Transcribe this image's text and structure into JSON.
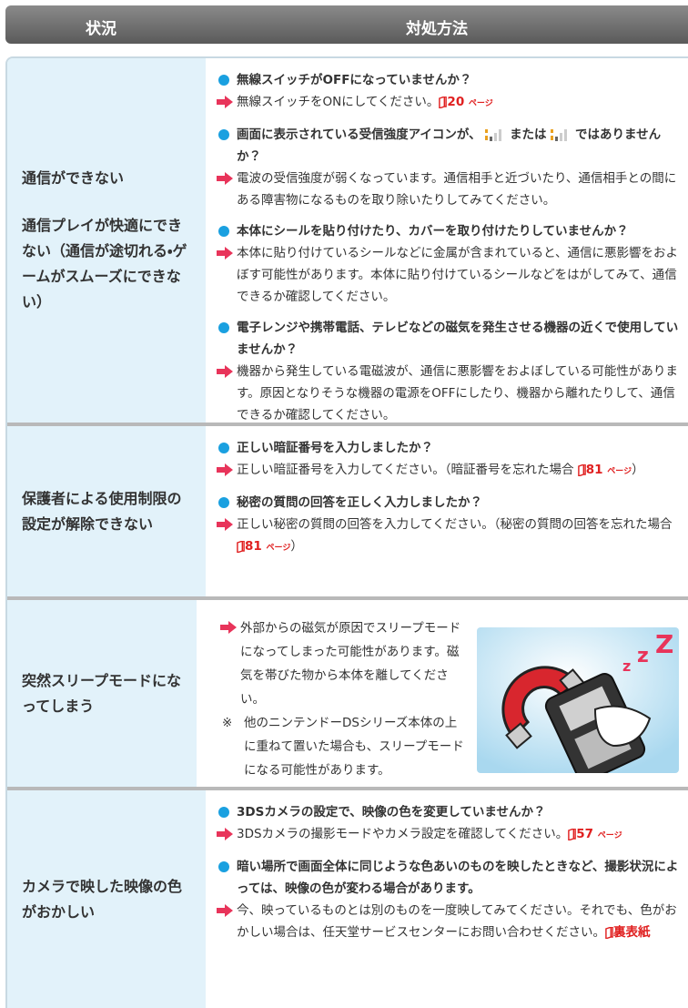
{
  "header": {
    "situation": "状況",
    "solution": "対処方法"
  },
  "rows": [
    {
      "situation": [
        "通信ができない",
        "通信プレイが快適にできない（通信が途切れる・ゲームがスムーズにできない）"
      ],
      "items": [
        {
          "q": [
            "無線スイッチがOFFになっていませんか？"
          ],
          "a": {
            "text": "無線スイッチをONにしてください。",
            "ref": "20",
            "unit": "ページ"
          }
        },
        {
          "q": [
            "画面に表示されている受信強度アイコンが、",
            "または",
            "ではありませんか？"
          ],
          "a": {
            "text": "電波の受信強度が弱くなっています。通信相手と近づいたり、通信相手との間にある障害物になるものを取り除いたりしてみてください。"
          }
        },
        {
          "q": [
            "本体にシールを貼り付けたり、カバーを取り付けたりしていませんか？"
          ],
          "a": {
            "text": "本体に貼り付けているシールなどに金属が含まれていると、通信に悪影響をおよぼす可能性があります。本体に貼り付けているシールなどをはがしてみて、通信できるか確認してください。"
          }
        },
        {
          "q": [
            "電子レンジや携帯電話、テレビなどの磁気を発生させる機器の近くで使用していませんか？"
          ],
          "a": {
            "text": "機器から発生している電磁波が、通信に悪影響をおよぼしている可能性があります。原因となりそうな機器の電源をOFFにしたり、機器から離れたりして、通信できるか確認してください。"
          }
        }
      ]
    },
    {
      "situation": [
        "保護者による使用制限の設定が解除できない"
      ],
      "items": [
        {
          "q": [
            "正しい暗証番号を入力しましたか？"
          ],
          "a": {
            "text": "正しい暗証番号を入力してください。（暗証番号を忘れた場合",
            "ref": "81",
            "unit": "ページ",
            "tail": "）"
          }
        },
        {
          "q": [
            "秘密の質問の回答を正しく入力しましたか？"
          ],
          "a": {
            "text": "正しい秘密の質問の回答を入力してください。（秘密の質問の回答を忘れた場合",
            "ref": "81",
            "unit": "ページ",
            "tail": "）"
          }
        }
      ]
    },
    {
      "situation": [
        "突然スリープモードになってしまう"
      ],
      "answer": "外部からの磁気が原因でスリープモードになってしまった可能性があります。磁気を帯びた物から本体を離してください。",
      "note_mark": "※",
      "note": "他のニンテンドーDSシリーズ本体の上に重ねて置いた場合も、スリープモードになる可能性があります。"
    },
    {
      "situation": [
        "カメラで映した映像の色がおかしい"
      ],
      "items": [
        {
          "q": [
            "3DSカメラの設定で、映像の色を変更していませんか？"
          ],
          "a": {
            "text": "3DSカメラの撮影モードやカメラ設定を確認してください。",
            "ref": "57",
            "unit": "ページ"
          }
        },
        {
          "q": [
            "暗い場所で画面全体に同じような色あいのものを映したときなど、撮影状況によっては、映像の色が変わる場合があります。"
          ],
          "a": {
            "text": "今、映っているものとは別のものを一度映してみてください。それでも、色がおかしい場合は、任天堂サービスセンターにお問い合わせください。",
            "ref": "裏表紙"
          }
        }
      ]
    }
  ]
}
